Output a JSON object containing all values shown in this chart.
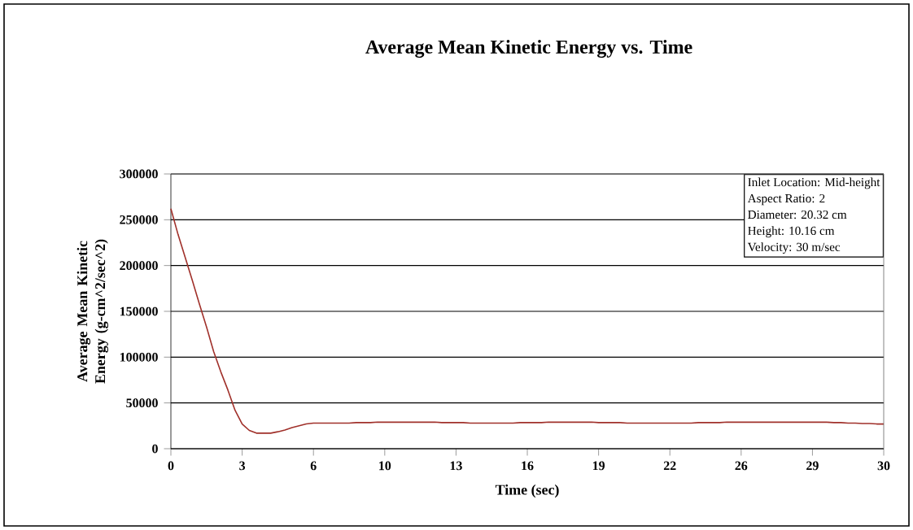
{
  "chart_data": {
    "type": "line",
    "title": "Average Mean Kinetic Energy vs. Time",
    "xlabel": "Time (sec)",
    "ylabel": "Average Mean Kinetic Energy (g-cm^2/sec^2)",
    "categories": [
      "0",
      null,
      null,
      null,
      null,
      null,
      null,
      null,
      null,
      null,
      "3",
      null,
      null,
      null,
      null,
      null,
      null,
      null,
      null,
      null,
      "6",
      null,
      null,
      null,
      null,
      null,
      null,
      null,
      null,
      null,
      "10",
      null,
      null,
      null,
      null,
      null,
      null,
      null,
      null,
      null,
      "13",
      null,
      null,
      null,
      null,
      null,
      null,
      null,
      null,
      null,
      "16",
      null,
      null,
      null,
      null,
      null,
      null,
      null,
      null,
      null,
      "19",
      null,
      null,
      null,
      null,
      null,
      null,
      null,
      null,
      null,
      "22",
      null,
      null,
      null,
      null,
      null,
      null,
      null,
      null,
      null,
      "26",
      null,
      null,
      null,
      null,
      null,
      null,
      null,
      null,
      null,
      "29",
      null,
      null,
      null,
      null,
      null,
      null,
      null,
      null,
      null,
      "30"
    ],
    "values": [
      262000,
      234000,
      209000,
      184000,
      158000,
      133000,
      106000,
      84000,
      64000,
      42000,
      27000,
      20000,
      17000,
      17000,
      17000,
      18500,
      20500,
      23000,
      25000,
      27000,
      28000,
      28000,
      28000,
      28000,
      28000,
      28000,
      28500,
      28500,
      28500,
      29000,
      29000,
      29000,
      29000,
      29000,
      29000,
      29000,
      29000,
      29000,
      28500,
      28500,
      28500,
      28500,
      28000,
      28000,
      28000,
      28000,
      28000,
      28000,
      28000,
      28500,
      28500,
      28500,
      28500,
      29000,
      29000,
      29000,
      29000,
      29000,
      29000,
      29000,
      28500,
      28500,
      28500,
      28500,
      28000,
      28000,
      28000,
      28000,
      28000,
      28000,
      28000,
      28000,
      28000,
      28000,
      28500,
      28500,
      28500,
      28500,
      29000,
      29000,
      29000,
      29000,
      29000,
      29000,
      29000,
      29000,
      29000,
      29000,
      29000,
      29000,
      29000,
      29000,
      29000,
      28500,
      28500,
      28000,
      28000,
      27500,
      27500,
      27000,
      27000
    ],
    "color": "#a0302a",
    "marker": "none",
    "line_style": "solid",
    "ylim": [
      0,
      300000
    ],
    "yticks": [
      0,
      50000,
      100000,
      150000,
      200000,
      250000,
      300000
    ],
    "grid": "y",
    "annotations": [
      "Inlet Location: Mid-height",
      "Aspect Ratio: 2",
      "Diameter: 20.32 cm",
      "Height: 10.16 cm",
      "Velocity: 30 m/sec"
    ]
  }
}
